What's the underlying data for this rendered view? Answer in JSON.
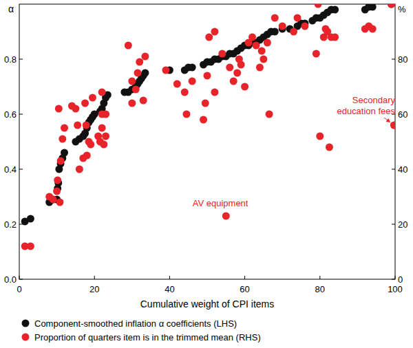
{
  "chart_data": {
    "type": "scatter",
    "x_label": "Cumulative weight of CPI items",
    "y_label": "α",
    "y2_label": "%",
    "xlim": [
      0,
      100
    ],
    "xticks": [
      0,
      20,
      40,
      60,
      80,
      100
    ],
    "ylim": [
      0,
      1
    ],
    "yticks": [
      {
        "value": 0,
        "label": "0.0"
      },
      0.2,
      0.4,
      0.6,
      0.8
    ],
    "y2lim": [
      0,
      100
    ],
    "y2ticks": [
      0,
      20,
      40,
      60,
      80
    ],
    "grid": false,
    "legend": "bottom",
    "marker": "circle",
    "series": [
      {
        "name": "Component-smoothed inflation α coefficients (LHS)",
        "color": "#111111",
        "x": [
          1.5,
          3,
          8,
          9,
          10,
          10.2,
          10.4,
          10.6,
          11,
          11.5,
          12,
          15,
          16,
          17,
          17.5,
          18,
          18.5,
          19,
          19.5,
          20,
          21.5,
          22,
          22.5,
          23,
          23.5,
          28,
          29,
          30,
          31,
          31.5,
          32,
          32.5,
          33,
          33.5,
          40,
          44,
          45,
          46,
          49,
          50,
          51,
          52,
          53,
          54,
          55,
          56,
          57,
          58,
          59,
          60,
          61,
          62,
          63,
          64,
          65,
          66,
          67,
          68,
          70,
          72,
          74,
          75,
          76,
          78,
          79,
          80,
          81,
          82,
          83,
          84,
          92,
          93,
          94,
          99
        ],
        "values": [
          0.21,
          0.22,
          0.28,
          0.29,
          0.29,
          0.33,
          0.35,
          0.4,
          0.42,
          0.44,
          0.46,
          0.5,
          0.51,
          0.52,
          0.53,
          0.55,
          0.57,
          0.58,
          0.59,
          0.6,
          0.61,
          0.62,
          0.64,
          0.66,
          0.67,
          0.68,
          0.68,
          0.69,
          0.7,
          0.71,
          0.72,
          0.73,
          0.74,
          0.75,
          0.76,
          0.76,
          0.77,
          0.77,
          0.78,
          0.79,
          0.79,
          0.8,
          0.8,
          0.81,
          0.81,
          0.82,
          0.82,
          0.83,
          0.84,
          0.85,
          0.85,
          0.86,
          0.86,
          0.87,
          0.88,
          0.89,
          0.9,
          0.9,
          0.91,
          0.91,
          0.92,
          0.93,
          0.93,
          0.94,
          0.95,
          0.95,
          0.96,
          0.97,
          0.98,
          0.98,
          0.98,
          0.99,
          0.99,
          1.0
        ]
      },
      {
        "name": "Proportion of quarters item is in the trimmed mean (RHS)",
        "color": "#e8232a",
        "axis": "y2",
        "x": [
          1.5,
          3,
          8,
          9,
          10,
          10.2,
          10.5,
          10.8,
          11,
          11.5,
          12,
          14,
          15,
          15.5,
          16,
          17,
          17.5,
          17.8,
          18,
          18.5,
          19,
          19.5,
          21,
          21.5,
          22,
          22,
          22,
          22.5,
          23,
          23,
          29,
          30,
          30,
          31,
          31.5,
          32,
          33,
          33.5,
          39,
          42,
          44,
          44.5,
          46,
          49,
          49.5,
          50,
          50.5,
          52,
          52,
          54,
          55,
          56,
          57,
          58,
          58.5,
          59,
          60,
          61,
          62,
          63,
          64,
          64.5,
          65,
          66,
          66.5,
          68,
          70,
          73,
          74,
          76,
          79,
          79.5,
          80,
          81,
          81.5,
          82,
          82.5,
          83,
          84,
          92,
          93,
          94,
          99,
          99.7
        ],
        "values": [
          12,
          12,
          30,
          29,
          32,
          36,
          62,
          28,
          43,
          51,
          55,
          63,
          62,
          56,
          40,
          44,
          64,
          56,
          45,
          50,
          49,
          66,
          52,
          50,
          55,
          60,
          68,
          49,
          52,
          60,
          85,
          64,
          72,
          69,
          75,
          79,
          65,
          81,
          76,
          71,
          68,
          60,
          72,
          58,
          64,
          74,
          88,
          68,
          90,
          82,
          23,
          77,
          72,
          75,
          80,
          78,
          70,
          86,
          88,
          85,
          77,
          83,
          80,
          86,
          60,
          95,
          92,
          90,
          95,
          92,
          82,
          100,
          52,
          88,
          91,
          90,
          48,
          88,
          88,
          91,
          92,
          91,
          100,
          56
        ]
      }
    ],
    "annotations": [
      {
        "text": "AV equipment",
        "x": 53.5,
        "y": 26.5
      },
      {
        "text": "Secondary education fees",
        "x": 100,
        "y": 64,
        "arrow": true
      }
    ]
  }
}
